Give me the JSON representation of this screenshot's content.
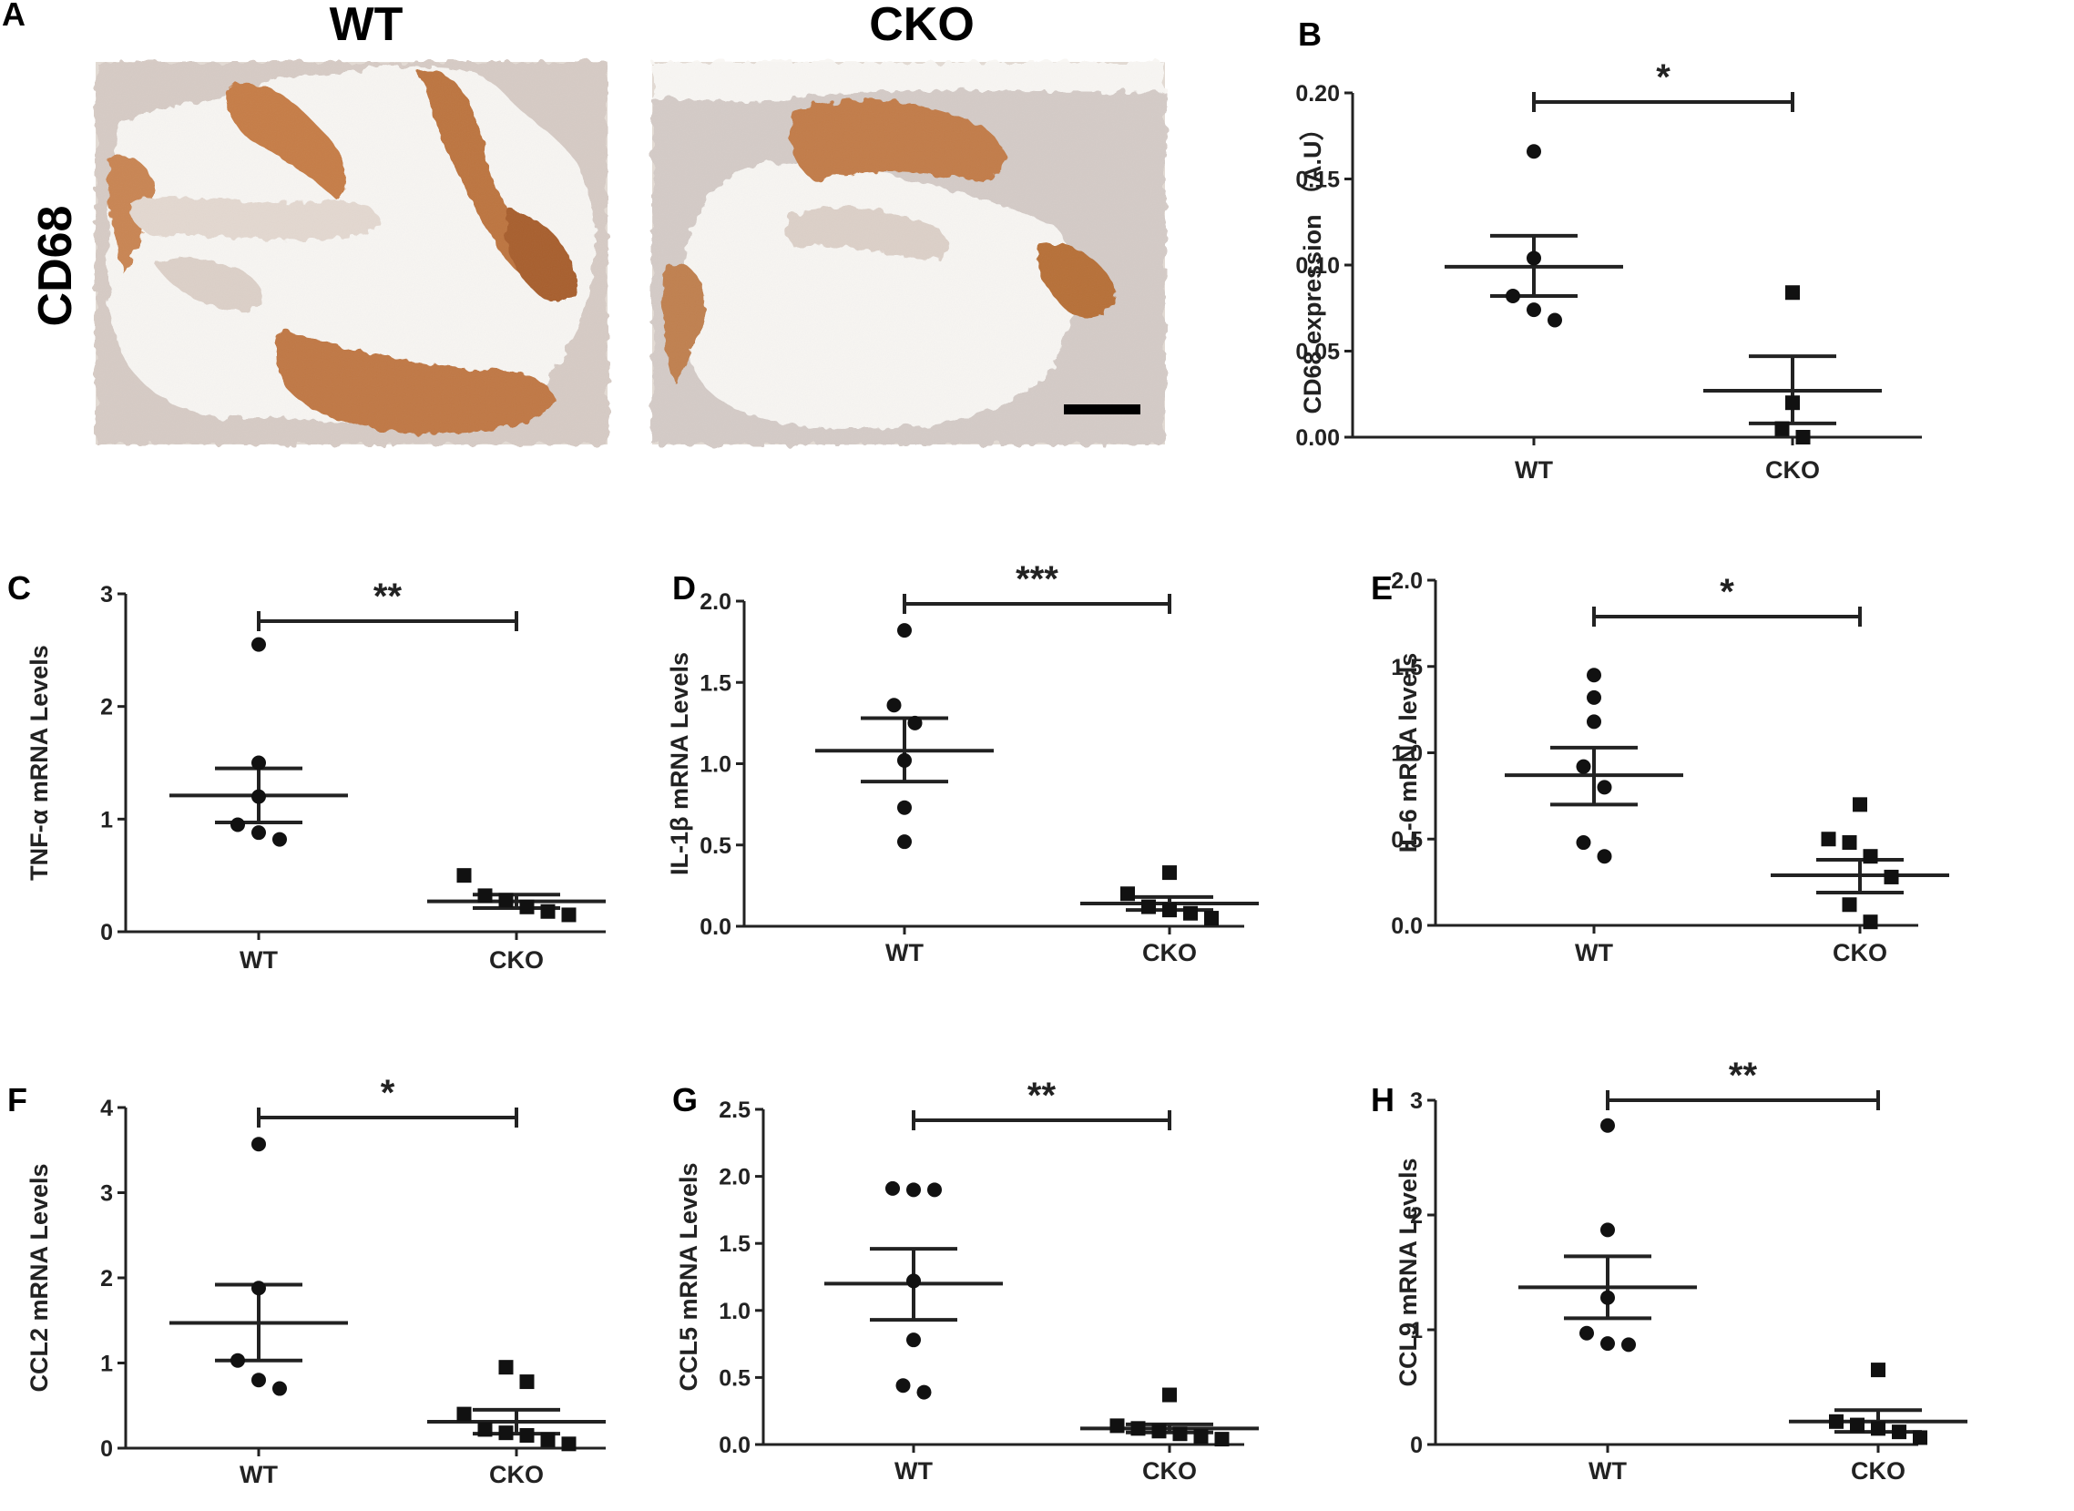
{
  "figure": {
    "panel_a": {
      "letter": "A",
      "stain_label": "CD68",
      "groups": [
        "WT",
        "CKO"
      ],
      "colors": {
        "background": "#f6f4f1",
        "tissue": "#d9d1cc",
        "stain": "#b56d3c",
        "hematoxylin": "#8d8fb6",
        "scale_bar": "#000000"
      }
    }
  },
  "chart_data": [
    {
      "panel": "B",
      "type": "scatter",
      "ylabel": "CD68 expression （A.U）",
      "categories": [
        "WT",
        "CKO"
      ],
      "ylim": [
        0,
        0.2
      ],
      "yticks": [
        0.0,
        0.05,
        0.1,
        0.15,
        0.2
      ],
      "tick_labels": [
        "0.00",
        "0.05",
        "0.10",
        "0.15",
        "0.20"
      ],
      "series": [
        {
          "name": "WT",
          "marker": "circle",
          "values": [
            0.166,
            0.104,
            0.082,
            0.074,
            0.068
          ],
          "mean": 0.099,
          "sem_low": 0.082,
          "sem_high": 0.117
        },
        {
          "name": "CKO",
          "marker": "square",
          "values": [
            0.084,
            0.02,
            0.005,
            0.0
          ],
          "mean": 0.027,
          "sem_low": 0.008,
          "sem_high": 0.047
        }
      ],
      "significance": "*"
    },
    {
      "panel": "C",
      "type": "scatter",
      "ylabel": "TNF-α mRNA Levels",
      "categories": [
        "WT",
        "CKO"
      ],
      "ylim": [
        0,
        3
      ],
      "yticks": [
        0,
        1,
        2,
        3
      ],
      "tick_labels": [
        "0",
        "1",
        "2",
        "3"
      ],
      "series": [
        {
          "name": "WT",
          "marker": "circle",
          "values": [
            2.55,
            1.5,
            1.2,
            0.95,
            0.88,
            0.82
          ],
          "mean": 1.21,
          "sem_low": 0.97,
          "sem_high": 1.45
        },
        {
          "name": "CKO",
          "marker": "square",
          "values": [
            0.5,
            0.32,
            0.28,
            0.22,
            0.18,
            0.15
          ],
          "mean": 0.27,
          "sem_low": 0.21,
          "sem_high": 0.33
        }
      ],
      "significance": "**"
    },
    {
      "panel": "D",
      "type": "scatter",
      "ylabel": "IL-1β mRNA Levels",
      "categories": [
        "WT",
        "CKO"
      ],
      "ylim": [
        0,
        2.0
      ],
      "yticks": [
        0,
        0.5,
        1.0,
        1.5,
        2.0
      ],
      "tick_labels": [
        "0.0",
        "0.5",
        "1.0",
        "1.5",
        "2.0"
      ],
      "series": [
        {
          "name": "WT",
          "marker": "circle",
          "values": [
            1.82,
            1.36,
            1.25,
            1.02,
            0.73,
            0.52
          ],
          "mean": 1.08,
          "sem_low": 0.89,
          "sem_high": 1.28
        },
        {
          "name": "CKO",
          "marker": "square",
          "values": [
            0.33,
            0.2,
            0.12,
            0.1,
            0.08,
            0.05
          ],
          "mean": 0.14,
          "sem_low": 0.1,
          "sem_high": 0.18
        }
      ],
      "significance": "***"
    },
    {
      "panel": "E",
      "type": "scatter",
      "ylabel": "IL-6 mRNA levels",
      "categories": [
        "WT",
        "CKO"
      ],
      "ylim": [
        0,
        2.0
      ],
      "yticks": [
        0,
        0.5,
        1.0,
        1.5,
        2.0
      ],
      "tick_labels": [
        "0.0",
        "0.5",
        "1.0",
        "1.5",
        "2.0"
      ],
      "series": [
        {
          "name": "WT",
          "marker": "circle",
          "values": [
            1.45,
            1.32,
            1.18,
            0.92,
            0.8,
            0.48,
            0.4
          ],
          "mean": 0.87,
          "sem_low": 0.7,
          "sem_high": 1.03
        },
        {
          "name": "CKO",
          "marker": "square",
          "values": [
            0.7,
            0.5,
            0.48,
            0.4,
            0.28,
            0.12,
            0.02
          ],
          "mean": 0.29,
          "sem_low": 0.19,
          "sem_high": 0.38
        }
      ],
      "significance": "*"
    },
    {
      "panel": "F",
      "type": "scatter",
      "ylabel": "CCL2 mRNA Levels",
      "categories": [
        "WT",
        "CKO"
      ],
      "ylim": [
        0,
        4
      ],
      "yticks": [
        0,
        1,
        2,
        3,
        4
      ],
      "tick_labels": [
        "0",
        "1",
        "2",
        "3",
        "4"
      ],
      "series": [
        {
          "name": "WT",
          "marker": "circle",
          "values": [
            3.57,
            1.88,
            1.03,
            0.8,
            0.7
          ],
          "mean": 1.47,
          "sem_low": 1.03,
          "sem_high": 1.92
        },
        {
          "name": "CKO",
          "marker": "square",
          "values": [
            0.95,
            0.78,
            0.4,
            0.22,
            0.18,
            0.15,
            0.1,
            0.05
          ],
          "mean": 0.31,
          "sem_low": 0.17,
          "sem_high": 0.45
        }
      ],
      "significance": "*"
    },
    {
      "panel": "G",
      "type": "scatter",
      "ylabel": "CCL5 mRNA Levels",
      "categories": [
        "WT",
        "CKO"
      ],
      "ylim": [
        0,
        2.5
      ],
      "yticks": [
        0,
        0.5,
        1.0,
        1.5,
        2.0,
        2.5
      ],
      "tick_labels": [
        "0.0",
        "0.5",
        "1.0",
        "1.5",
        "2.0",
        "2.5"
      ],
      "series": [
        {
          "name": "WT",
          "marker": "circle",
          "values": [
            1.91,
            1.9,
            1.9,
            1.22,
            0.78,
            0.44,
            0.39
          ],
          "mean": 1.2,
          "sem_low": 0.93,
          "sem_high": 1.46
        },
        {
          "name": "CKO",
          "marker": "square",
          "values": [
            0.37,
            0.14,
            0.12,
            0.1,
            0.08,
            0.06,
            0.04
          ],
          "mean": 0.12,
          "sem_low": 0.09,
          "sem_high": 0.15
        }
      ],
      "significance": "**"
    },
    {
      "panel": "H",
      "type": "scatter",
      "ylabel": "CCL9 mRNA Levels",
      "categories": [
        "WT",
        "CKO"
      ],
      "ylim": [
        0,
        3
      ],
      "yticks": [
        0,
        1,
        2,
        3
      ],
      "tick_labels": [
        "0",
        "1",
        "2",
        "3"
      ],
      "series": [
        {
          "name": "WT",
          "marker": "circle",
          "values": [
            2.78,
            1.87,
            1.28,
            0.97,
            0.88,
            0.87
          ],
          "mean": 1.37,
          "sem_low": 1.1,
          "sem_high": 1.64
        },
        {
          "name": "CKO",
          "marker": "square",
          "values": [
            0.65,
            0.2,
            0.17,
            0.14,
            0.11,
            0.06
          ],
          "mean": 0.2,
          "sem_low": 0.11,
          "sem_high": 0.3
        }
      ],
      "significance": "**"
    }
  ]
}
